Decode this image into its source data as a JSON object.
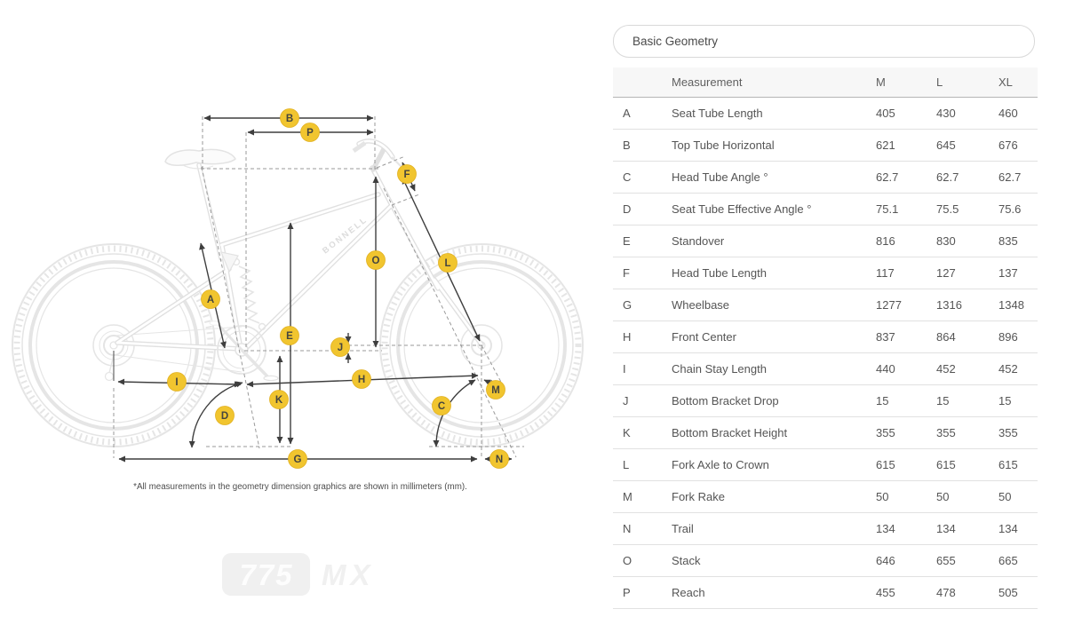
{
  "panel_title": "Basic Geometry",
  "table": {
    "columns": [
      "",
      "Measurement",
      "M",
      "L",
      "XL"
    ],
    "rows": [
      {
        "key": "A",
        "measurement": "Seat Tube Length",
        "m": "405",
        "l": "430",
        "xl": "460"
      },
      {
        "key": "B",
        "measurement": "Top Tube Horizontal",
        "m": "621",
        "l": "645",
        "xl": "676"
      },
      {
        "key": "C",
        "measurement": "Head Tube Angle °",
        "m": "62.7",
        "l": "62.7",
        "xl": "62.7"
      },
      {
        "key": "D",
        "measurement": "Seat Tube Effective Angle °",
        "m": "75.1",
        "l": "75.5",
        "xl": "75.6"
      },
      {
        "key": "E",
        "measurement": "Standover",
        "m": "816",
        "l": "830",
        "xl": "835"
      },
      {
        "key": "F",
        "measurement": "Head Tube Length",
        "m": "117",
        "l": "127",
        "xl": "137"
      },
      {
        "key": "G",
        "measurement": "Wheelbase",
        "m": "1277",
        "l": "1316",
        "xl": "1348"
      },
      {
        "key": "H",
        "measurement": "Front Center",
        "m": "837",
        "l": "864",
        "xl": "896"
      },
      {
        "key": "I",
        "measurement": "Chain Stay Length",
        "m": "440",
        "l": "452",
        "xl": "452"
      },
      {
        "key": "J",
        "measurement": "Bottom Bracket Drop",
        "m": "15",
        "l": "15",
        "xl": "15"
      },
      {
        "key": "K",
        "measurement": "Bottom Bracket Height",
        "m": "355",
        "l": "355",
        "xl": "355"
      },
      {
        "key": "L",
        "measurement": "Fork Axle to Crown",
        "m": "615",
        "l": "615",
        "xl": "615"
      },
      {
        "key": "M",
        "measurement": "Fork Rake",
        "m": "50",
        "l": "50",
        "xl": "50"
      },
      {
        "key": "N",
        "measurement": "Trail",
        "m": "134",
        "l": "134",
        "xl": "134"
      },
      {
        "key": "O",
        "measurement": "Stack",
        "m": "646",
        "l": "655",
        "xl": "665"
      },
      {
        "key": "P",
        "measurement": "Reach",
        "m": "455",
        "l": "478",
        "xl": "505"
      }
    ]
  },
  "diagram": {
    "frame_brand": "BONNELL",
    "footnote": "*All measurements in the geometry dimension graphics are shown in millimeters (mm).",
    "logo": {
      "model": "775",
      "variant": "MX"
    },
    "labels": [
      {
        "letter": "A"
      },
      {
        "letter": "B"
      },
      {
        "letter": "C"
      },
      {
        "letter": "D"
      },
      {
        "letter": "E"
      },
      {
        "letter": "F"
      },
      {
        "letter": "G"
      },
      {
        "letter": "H"
      },
      {
        "letter": "I"
      },
      {
        "letter": "J"
      },
      {
        "letter": "K"
      },
      {
        "letter": "L"
      },
      {
        "letter": "M"
      },
      {
        "letter": "N"
      },
      {
        "letter": "O"
      },
      {
        "letter": "P"
      }
    ]
  },
  "colors": {
    "label_badge": "#F1C52F",
    "dimension_line": "#3E3E3E",
    "bike_line": "#E5E5E5",
    "table_header_bg": "#F7F7F7",
    "row_border": "#E1E1E1"
  }
}
